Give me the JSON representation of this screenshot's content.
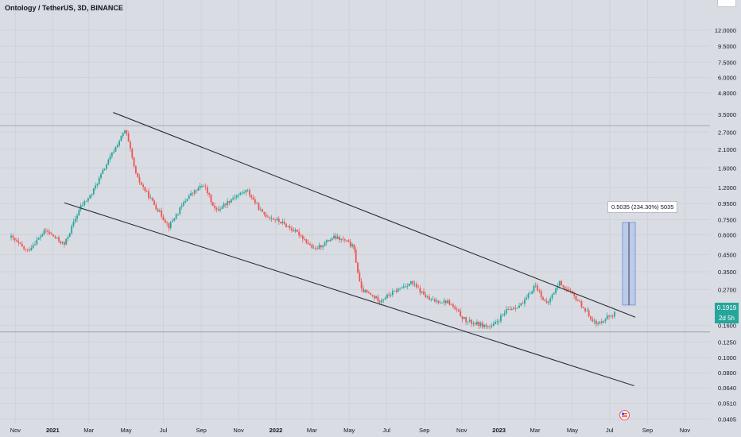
{
  "chart_title": "Ontology / TetherUS, 3D, BINANCE",
  "measure_label": "0.5035 (234.30%) 5035",
  "price_badge": {
    "price": "0.1919",
    "countdown": "2d 5h"
  },
  "colors": {
    "background": "#d9dce3",
    "up_candle": "#26a69a",
    "down_candle": "#ef5350",
    "trendline": "#2a2e39",
    "measure_fill": "#b3c6ec",
    "measure_border": "#6f8fd6",
    "horizontal_line": "#9598a1"
  },
  "chart_data": {
    "type": "candlestick",
    "title": "Ontology / TetherUS, 3D, BINANCE",
    "yscale": "log",
    "ylim": [
      0.04,
      16
    ],
    "y_ticks": [
      "12.0000",
      "9.5000",
      "7.5000",
      "6.0000",
      "4.8000",
      "3.5000",
      "2.7000",
      "2.1000",
      "1.6000",
      "1.2000",
      "0.9500",
      "0.7500",
      "0.6000",
      "0.4500",
      "0.3500",
      "0.2700",
      "0.2100",
      "0.1600",
      "0.1250",
      "0.1000",
      "0.0800",
      "0.0640",
      "0.0510",
      "0.0405"
    ],
    "x_ticks": [
      "Nov",
      "2021",
      "Mar",
      "May",
      "Jul",
      "Sep",
      "Nov",
      "2022",
      "Mar",
      "May",
      "Jul",
      "Sep",
      "Nov",
      "2023",
      "Mar",
      "May",
      "Jul",
      "Sep",
      "Nov"
    ],
    "xlim": [
      "2020-10-25",
      "2023-11-20"
    ],
    "grid": true,
    "series_anchor_points": [
      {
        "date": "2020-10-25",
        "close": 0.58
      },
      {
        "date": "2020-11-20",
        "close": 0.47
      },
      {
        "date": "2020-12-20",
        "close": 0.64
      },
      {
        "date": "2021-01-20",
        "close": 0.52
      },
      {
        "date": "2021-02-15",
        "close": 0.9
      },
      {
        "date": "2021-03-05",
        "close": 1.08
      },
      {
        "date": "2021-03-25",
        "close": 1.55
      },
      {
        "date": "2021-04-15",
        "close": 2.2
      },
      {
        "date": "2021-04-30",
        "close": 2.8
      },
      {
        "date": "2021-05-18",
        "close": 1.4
      },
      {
        "date": "2021-06-15",
        "close": 0.95
      },
      {
        "date": "2021-07-10",
        "close": 0.68
      },
      {
        "date": "2021-08-10",
        "close": 1.05
      },
      {
        "date": "2021-09-05",
        "close": 1.25
      },
      {
        "date": "2021-09-25",
        "close": 0.85
      },
      {
        "date": "2021-10-25",
        "close": 1.05
      },
      {
        "date": "2021-11-15",
        "close": 1.15
      },
      {
        "date": "2021-12-10",
        "close": 0.82
      },
      {
        "date": "2022-01-10",
        "close": 0.72
      },
      {
        "date": "2022-02-10",
        "close": 0.6
      },
      {
        "date": "2022-03-05",
        "close": 0.48
      },
      {
        "date": "2022-04-05",
        "close": 0.58
      },
      {
        "date": "2022-04-25",
        "close": 0.55
      },
      {
        "date": "2022-05-08",
        "close": 0.5
      },
      {
        "date": "2022-05-20",
        "close": 0.27
      },
      {
        "date": "2022-06-20",
        "close": 0.23
      },
      {
        "date": "2022-07-20",
        "close": 0.27
      },
      {
        "date": "2022-08-10",
        "close": 0.3
      },
      {
        "date": "2022-09-10",
        "close": 0.23
      },
      {
        "date": "2022-10-10",
        "close": 0.225
      },
      {
        "date": "2022-11-08",
        "close": 0.17
      },
      {
        "date": "2022-12-20",
        "close": 0.155
      },
      {
        "date": "2023-01-15",
        "close": 0.2
      },
      {
        "date": "2023-02-10",
        "close": 0.22
      },
      {
        "date": "2023-03-01",
        "close": 0.29
      },
      {
        "date": "2023-03-20",
        "close": 0.215
      },
      {
        "date": "2023-04-10",
        "close": 0.3
      },
      {
        "date": "2023-05-10",
        "close": 0.23
      },
      {
        "date": "2023-06-10",
        "close": 0.16
      },
      {
        "date": "2023-06-25",
        "close": 0.18
      },
      {
        "date": "2023-07-10",
        "close": 0.19
      }
    ],
    "trendlines": [
      {
        "from": {
          "date": "2021-04-10",
          "price": 3.6
        },
        "to": {
          "date": "2023-08-12",
          "price": 0.18
        }
      },
      {
        "from": {
          "date": "2021-01-20",
          "price": 0.96
        },
        "to": {
          "date": "2023-08-10",
          "price": 0.066
        }
      }
    ],
    "horizontal_line_price": 2.97,
    "horizontal_line_price_lower": 0.145,
    "measurement": {
      "from": {
        "date": "2023-07-22",
        "price": 0.215
      },
      "to": {
        "date": "2023-08-12",
        "price": 0.72
      },
      "label": "0.5035 (234.30%) 5035"
    },
    "last_price": 0.1919
  }
}
